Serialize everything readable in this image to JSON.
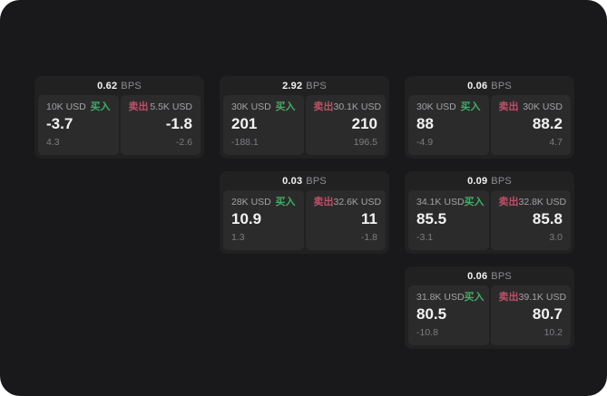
{
  "labels": {
    "bps_unit": "BPS",
    "buy": "买入",
    "sell": "卖出"
  },
  "colors": {
    "buy": "#3fae63",
    "sell": "#c04f66",
    "page_bg": "#19191b",
    "card_bg": "#212122",
    "panel_bg": "#2b2b2c"
  },
  "quotes": [
    {
      "grid": {
        "row": 1,
        "col": 1
      },
      "bps": "0.62",
      "buy": {
        "amount": "10K USD",
        "price": "-3.7",
        "sub": "4.3"
      },
      "sell": {
        "amount": "5.5K USD",
        "price": "-1.8",
        "sub": "-2.6"
      }
    },
    {
      "grid": {
        "row": 1,
        "col": 2
      },
      "bps": "2.92",
      "buy": {
        "amount": "30K USD",
        "price": "201",
        "sub": "-188.1"
      },
      "sell": {
        "amount": "30.1K USD",
        "price": "210",
        "sub": "196.5"
      }
    },
    {
      "grid": {
        "row": 1,
        "col": 3
      },
      "bps": "0.06",
      "buy": {
        "amount": "30K USD",
        "price": "88",
        "sub": "-4.9"
      },
      "sell": {
        "amount": "30K USD",
        "price": "88.2",
        "sub": "4.7"
      }
    },
    {
      "grid": {
        "row": 2,
        "col": 2
      },
      "bps": "0.03",
      "buy": {
        "amount": "28K USD",
        "price": "10.9",
        "sub": "1.3"
      },
      "sell": {
        "amount": "32.6K USD",
        "price": "11",
        "sub": "-1.8"
      }
    },
    {
      "grid": {
        "row": 2,
        "col": 3
      },
      "bps": "0.09",
      "buy": {
        "amount": "34.1K USD",
        "price": "85.5",
        "sub": "-3.1"
      },
      "sell": {
        "amount": "32.8K USD",
        "price": "85.8",
        "sub": "3.0"
      }
    },
    {
      "grid": {
        "row": 3,
        "col": 3
      },
      "bps": "0.06",
      "buy": {
        "amount": "31.8K USD",
        "price": "80.5",
        "sub": "-10.8"
      },
      "sell": {
        "amount": "39.1K USD",
        "price": "80.7",
        "sub": "10.2"
      }
    }
  ]
}
